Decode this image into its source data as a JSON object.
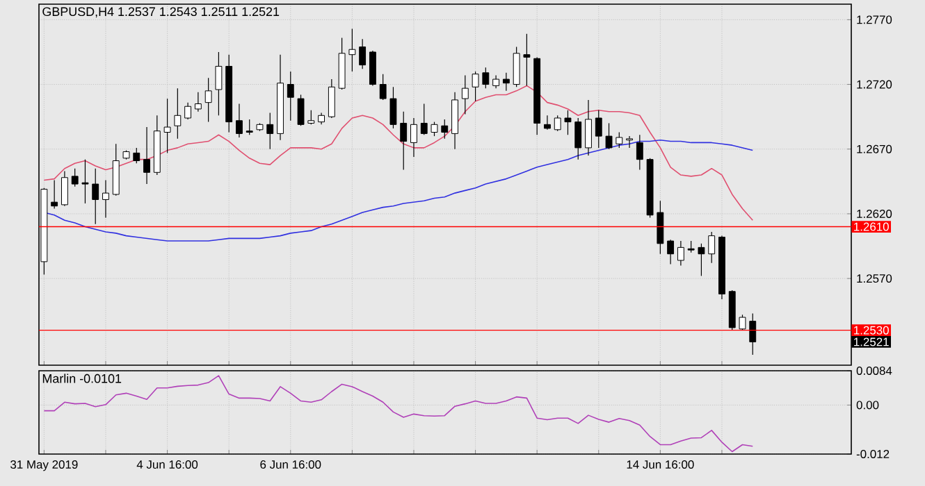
{
  "chart_data": [
    {
      "type": "candlestick",
      "title": "GBPUSD,H4  1.2537 1.2543 1.2511 1.2521",
      "categories": [
        null,
        null,
        null,
        null,
        null,
        null,
        null,
        null,
        null,
        null,
        null,
        null,
        null,
        null,
        null,
        null,
        null,
        null,
        null,
        null,
        null,
        null,
        null,
        null,
        null,
        null,
        null,
        null,
        null,
        null,
        null,
        null,
        null,
        null,
        null,
        null,
        null,
        null,
        null,
        null,
        null,
        null,
        null,
        null,
        null,
        null,
        null,
        null,
        null,
        null,
        null,
        null,
        null,
        null,
        null,
        null,
        null,
        null,
        null,
        null,
        null,
        null,
        null,
        null,
        null,
        null,
        null,
        null,
        null,
        null
      ],
      "ohlc": [
        [
          1.2583,
          1.264,
          1.2573,
          1.2639
        ],
        [
          1.2629,
          1.2646,
          1.2624,
          1.2626
        ],
        [
          1.2627,
          1.2653,
          1.2626,
          1.2648
        ],
        [
          1.2649,
          1.2655,
          1.2641,
          1.2643
        ],
        [
          1.2644,
          1.2662,
          1.2628,
          1.2643
        ],
        [
          1.2643,
          1.2655,
          1.2612,
          1.2631
        ],
        [
          1.2631,
          1.2646,
          1.2617,
          1.2636
        ],
        [
          1.2635,
          1.2674,
          1.2634,
          1.2661
        ],
        [
          1.2663,
          1.2669,
          1.2662,
          1.2668
        ],
        [
          1.2667,
          1.2671,
          1.2659,
          1.2661
        ],
        [
          1.2662,
          1.2687,
          1.2643,
          1.2652
        ],
        [
          1.2652,
          1.2696,
          1.265,
          1.2684
        ],
        [
          1.2683,
          1.2709,
          1.2667,
          1.2687
        ],
        [
          1.2688,
          1.2717,
          1.2678,
          1.2696
        ],
        [
          1.2694,
          1.2706,
          1.2693,
          1.2703
        ],
        [
          1.2701,
          1.2714,
          1.2699,
          1.2705
        ],
        [
          1.2706,
          1.2725,
          1.2691,
          1.2715
        ],
        [
          1.2716,
          1.2745,
          1.2696,
          1.2734
        ],
        [
          1.2734,
          1.2743,
          1.2683,
          1.2691
        ],
        [
          1.2692,
          1.2705,
          1.2679,
          1.2682
        ],
        [
          1.2684,
          1.2693,
          1.2681,
          1.2683
        ],
        [
          1.2685,
          1.269,
          1.2684,
          1.2689
        ],
        [
          1.2689,
          1.2698,
          1.267,
          1.2682
        ],
        [
          1.2682,
          1.2743,
          1.2677,
          1.2721
        ],
        [
          1.272,
          1.273,
          1.2692,
          1.271
        ],
        [
          1.2709,
          1.2712,
          1.2688,
          1.2689
        ],
        [
          1.269,
          1.27,
          1.2689,
          1.2692
        ],
        [
          1.2691,
          1.2698,
          1.2689,
          1.2696
        ],
        [
          1.2695,
          1.2724,
          1.2694,
          1.2718
        ],
        [
          1.2717,
          1.2756,
          1.2716,
          1.2744
        ],
        [
          1.2743,
          1.2763,
          1.273,
          1.2747
        ],
        [
          1.2749,
          1.2755,
          1.2732,
          1.2735
        ],
        [
          1.2745,
          1.2746,
          1.2719,
          1.272
        ],
        [
          1.272,
          1.2728,
          1.2708,
          1.2709
        ],
        [
          1.2709,
          1.2718,
          1.2686,
          1.2689
        ],
        [
          1.269,
          1.2699,
          1.2654,
          1.2676
        ],
        [
          1.2675,
          1.2694,
          1.2664,
          1.2689
        ],
        [
          1.269,
          1.2705,
          1.2681,
          1.2682
        ],
        [
          1.2683,
          1.2691,
          1.268,
          1.2689
        ],
        [
          1.2688,
          1.2693,
          1.2678,
          1.2683
        ],
        [
          1.2682,
          1.2714,
          1.267,
          1.2708
        ],
        [
          1.2709,
          1.2727,
          1.2697,
          1.2717
        ],
        [
          1.2718,
          1.273,
          1.2707,
          1.2728
        ],
        [
          1.2729,
          1.2733,
          1.2717,
          1.272
        ],
        [
          1.2719,
          1.2727,
          1.2717,
          1.2724
        ],
        [
          1.2724,
          1.2729,
          1.2715,
          1.2721
        ],
        [
          1.272,
          1.2749,
          1.2718,
          1.2744
        ],
        [
          1.2743,
          1.2759,
          1.2719,
          1.2741
        ],
        [
          1.274,
          1.2741,
          1.2681,
          1.269
        ],
        [
          1.2689,
          1.2696,
          1.2685,
          1.2686
        ],
        [
          1.2685,
          1.2696,
          1.2684,
          1.2694
        ],
        [
          1.2694,
          1.27,
          1.2681,
          1.2691
        ],
        [
          1.2691,
          1.2694,
          1.2662,
          1.2671
        ],
        [
          1.2671,
          1.2708,
          1.2665,
          1.2693
        ],
        [
          1.2694,
          1.27,
          1.2671,
          1.268
        ],
        [
          1.268,
          1.269,
          1.267,
          1.2671
        ],
        [
          1.2674,
          1.2683,
          1.2671,
          1.2679
        ],
        [
          1.2677,
          1.268,
          1.2671,
          1.2678
        ],
        [
          1.2675,
          1.2681,
          1.2654,
          1.2662
        ],
        [
          1.2662,
          1.2663,
          1.2617,
          1.2619
        ],
        [
          1.2621,
          1.263,
          1.2589,
          1.2597
        ],
        [
          1.2599,
          1.26,
          1.2581,
          1.2589
        ],
        [
          1.2584,
          1.2599,
          1.258,
          1.2594
        ],
        [
          1.2593,
          1.2599,
          1.259,
          1.2592
        ],
        [
          1.2594,
          1.2597,
          1.2572,
          1.2589
        ],
        [
          1.2589,
          1.2606,
          1.2582,
          1.2603
        ],
        [
          1.2602,
          1.2603,
          1.2554,
          1.2558
        ],
        [
          1.256,
          1.2561,
          1.253,
          1.2532
        ],
        [
          1.2531,
          1.2542,
          1.253,
          1.254
        ],
        [
          1.2537,
          1.2543,
          1.2511,
          1.2521
        ]
      ],
      "series": [
        {
          "type": "line",
          "color": "#e05070",
          "values": [
            1.2646,
            1.2647,
            1.2655,
            1.2659,
            1.2661,
            1.2657,
            1.2654,
            1.2656,
            1.2659,
            1.2662,
            1.2662,
            1.2665,
            1.2669,
            1.2671,
            1.2674,
            1.2675,
            1.2676,
            1.2681,
            1.2676,
            1.2669,
            1.2663,
            1.2659,
            1.2658,
            1.2665,
            1.2671,
            1.2671,
            1.2671,
            1.267,
            1.2674,
            1.2686,
            1.2694,
            1.2696,
            1.2694,
            1.2689,
            1.2681,
            1.2674,
            1.2671,
            1.2671,
            1.2675,
            1.268,
            1.2688,
            1.2699,
            1.2707,
            1.271,
            1.2712,
            1.2712,
            1.2715,
            1.2719,
            1.2714,
            1.2706,
            1.2704,
            1.2701,
            1.2696,
            1.2699,
            1.27,
            1.2699,
            1.2699,
            1.2698,
            1.2696,
            1.2683,
            1.2671,
            1.2656,
            1.265,
            1.2649,
            1.265,
            1.2655,
            1.265,
            1.2635,
            1.2624,
            1.2615
          ]
        },
        {
          "type": "line",
          "color": "#3030e0",
          "values": [
            1.2621,
            1.2619,
            1.2615,
            1.2613,
            1.261,
            1.2608,
            1.2606,
            1.2605,
            1.2603,
            1.2602,
            1.2601,
            1.26,
            1.2599,
            1.2599,
            1.2599,
            1.2599,
            1.2599,
            1.26,
            1.2601,
            1.2601,
            1.2601,
            1.2601,
            1.2602,
            1.2603,
            1.2605,
            1.2606,
            1.2607,
            1.261,
            1.2612,
            1.2615,
            1.2618,
            1.2621,
            1.2623,
            1.2625,
            1.2626,
            1.2628,
            1.2629,
            1.263,
            1.2632,
            1.2633,
            1.2636,
            1.2638,
            1.264,
            1.2643,
            1.2645,
            1.2647,
            1.265,
            1.2653,
            1.2656,
            1.2658,
            1.266,
            1.2662,
            1.2665,
            1.2667,
            1.2669,
            1.2671,
            1.2673,
            1.2674,
            1.2676,
            1.2676,
            1.2677,
            1.2676,
            1.2676,
            1.2675,
            1.2675,
            1.2675,
            1.2674,
            1.2673,
            1.2671,
            1.2669
          ]
        }
      ],
      "ylim": [
        1.2503,
        1.2782
      ],
      "yticks": [
        {
          "value": 1.257,
          "label": "1.2570"
        },
        {
          "value": 1.262,
          "label": "1.2620"
        },
        {
          "value": 1.267,
          "label": "1.2670"
        },
        {
          "value": 1.272,
          "label": "1.2720"
        },
        {
          "value": 1.277,
          "label": "1.2770"
        }
      ],
      "ref_lines": [
        {
          "axis": "y",
          "value": 1.261,
          "label": "1.2610",
          "color": "#ff0000"
        },
        {
          "axis": "y",
          "value": 1.253,
          "label": "1.2530",
          "color": "#ff0000"
        }
      ],
      "annotations": [
        "1.2521"
      ],
      "grid": true,
      "tick_labels": "y"
    },
    {
      "type": "line",
      "title": "Marlin -0.0101",
      "categories": [
        "31 May 2019",
        null,
        null,
        null,
        null,
        null,
        null,
        null,
        null,
        null,
        null,
        null,
        "4 Jun 16:00",
        null,
        null,
        null,
        null,
        null,
        null,
        null,
        null,
        null,
        null,
        null,
        "6 Jun 16:00",
        null,
        null,
        null,
        null,
        null,
        null,
        null,
        null,
        null,
        null,
        null,
        null,
        null,
        null,
        null,
        null,
        null,
        null,
        null,
        null,
        null,
        null,
        null,
        null,
        null,
        null,
        null,
        null,
        null,
        null,
        null,
        null,
        null,
        null,
        null,
        "14 Jun 16:00",
        null,
        null,
        null,
        null,
        null,
        null,
        null,
        null,
        null
      ],
      "series": [
        {
          "color": "#b040b8",
          "values": [
            -0.0014,
            -0.0014,
            0.0007,
            0.0003,
            0.0004,
            -0.0004,
            0.0001,
            0.0025,
            0.0029,
            0.0022,
            0.0014,
            0.0042,
            0.0042,
            0.0046,
            0.0048,
            0.0049,
            0.0055,
            0.0072,
            0.0027,
            0.0017,
            0.0017,
            0.0016,
            0.001,
            0.0045,
            0.0029,
            0.001,
            0.0007,
            0.0013,
            0.0033,
            0.0051,
            0.0045,
            0.0033,
            0.0022,
            0.0007,
            -0.0017,
            -0.003,
            -0.0022,
            -0.0026,
            -0.0027,
            -0.0026,
            -0.0003,
            0.0003,
            0.001,
            0.0004,
            0.0004,
            0.001,
            0.002,
            0.0017,
            -0.0032,
            -0.0036,
            -0.0032,
            -0.0032,
            -0.0045,
            -0.0025,
            -0.0035,
            -0.0042,
            -0.0033,
            -0.0038,
            -0.0049,
            -0.0077,
            -0.0097,
            -0.0097,
            -0.0088,
            -0.0081,
            -0.008,
            -0.0062,
            -0.0091,
            -0.0114,
            -0.0097,
            -0.0101
          ]
        }
      ],
      "ylim": [
        -0.012,
        0.0084
      ],
      "yticks": [
        -0.012,
        {
          "value": 0,
          "label": "0.00"
        },
        0.0084
      ],
      "grid": true
    }
  ]
}
